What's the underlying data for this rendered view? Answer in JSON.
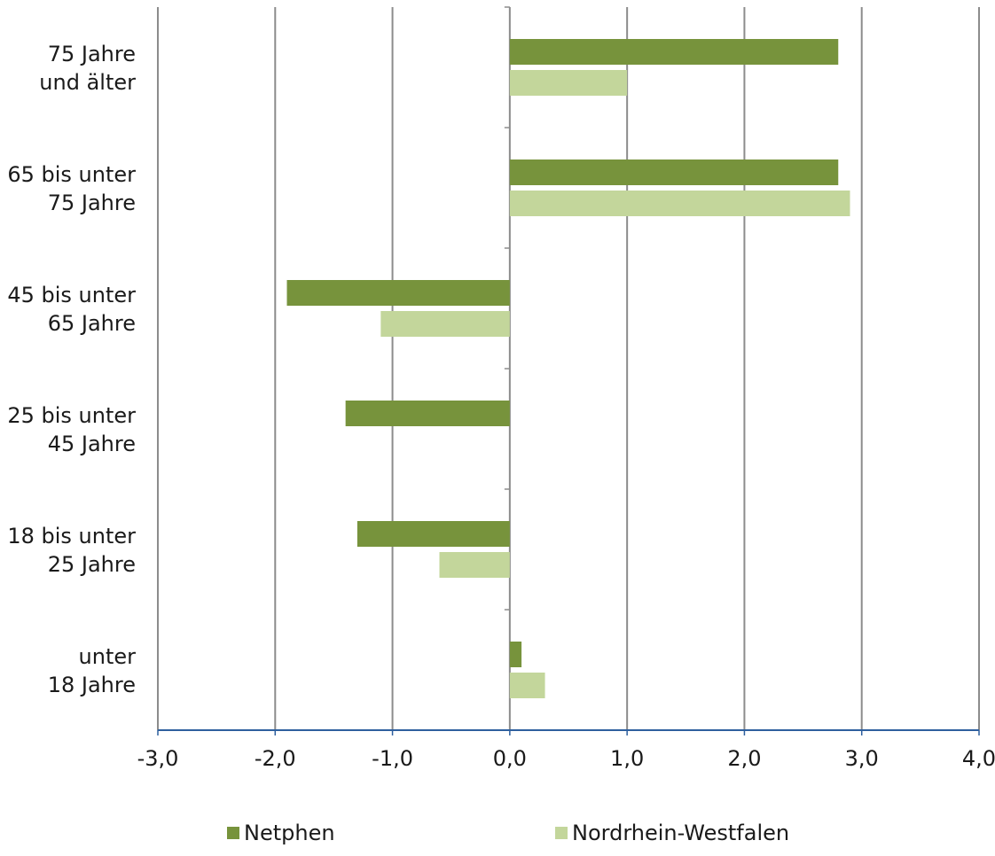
{
  "chart_data": {
    "type": "bar",
    "orientation": "horizontal",
    "categories": [
      [
        "75 Jahre",
        "und älter"
      ],
      [
        "65 bis unter",
        "75 Jahre"
      ],
      [
        "45 bis unter",
        "65 Jahre"
      ],
      [
        "25 bis unter",
        "45 Jahre"
      ],
      [
        "18 bis unter",
        "25 Jahre"
      ],
      [
        "unter",
        "18 Jahre"
      ]
    ],
    "series": [
      {
        "name": "Netphen",
        "color": "#77933c",
        "values": [
          2.8,
          2.8,
          -1.9,
          -1.4,
          -1.3,
          0.1
        ]
      },
      {
        "name": "Nordrhein-Westfalen",
        "color": "#c3d69b",
        "values": [
          1.0,
          2.9,
          -1.1,
          null,
          -0.6,
          0.3
        ]
      }
    ],
    "xlim": [
      -3,
      4
    ],
    "xticks": [
      "-3,0",
      "-2,0",
      "-1,0",
      "0,0",
      "1,0",
      "2,0",
      "3,0",
      "4,0"
    ],
    "grid": true,
    "legend_position": "bottom",
    "axis_color": "#2e5f9e",
    "grid_color": "#8c8c8c"
  }
}
